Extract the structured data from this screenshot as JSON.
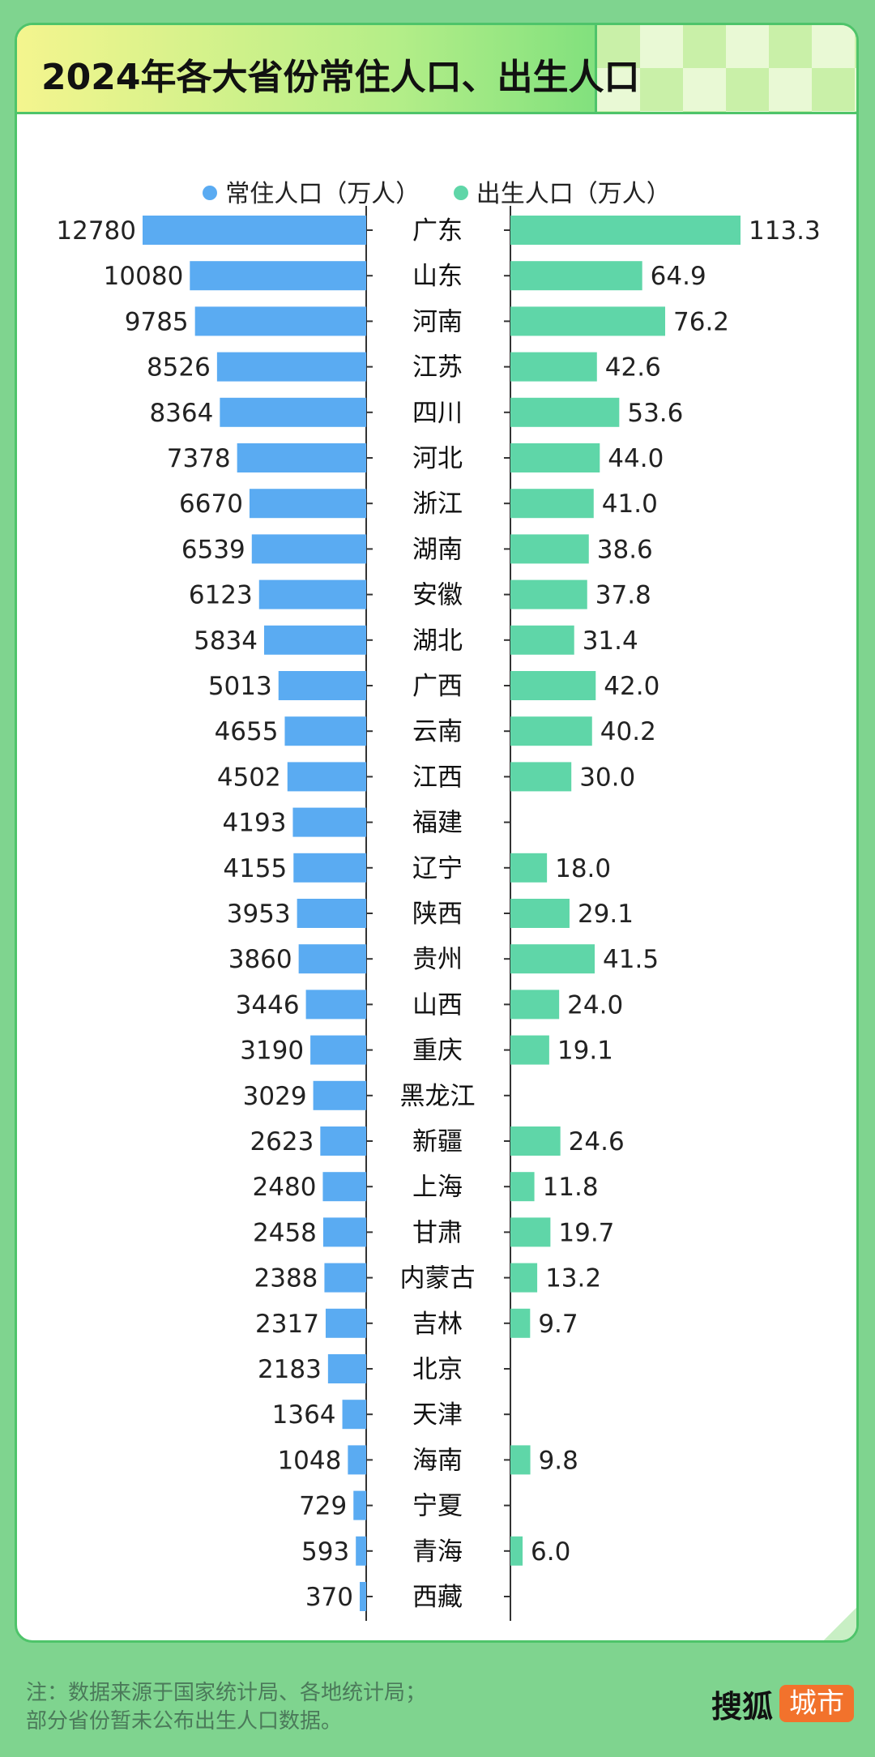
{
  "title": "2024年各大省份常住人口、出生人口",
  "legend": {
    "resident_label": "常住人口（万人）",
    "birth_label": "出生人口（万人）"
  },
  "colors": {
    "resident": "#5aabf2",
    "birth": "#5fd6a8",
    "axis": "#333333"
  },
  "footnote": {
    "line1": "注：数据来源于国家统计局、各地统计局；",
    "line2": "部分省份暂未公布出生人口数据。"
  },
  "brand": {
    "name": "搜狐",
    "tag": "城市"
  },
  "chart_data": {
    "type": "bar",
    "orientation": "horizontal-butterfly",
    "title": "2024年各大省份常住人口、出生人口",
    "categories": [
      "广东",
      "山东",
      "河南",
      "江苏",
      "四川",
      "河北",
      "浙江",
      "湖南",
      "安徽",
      "湖北",
      "广西",
      "云南",
      "江西",
      "福建",
      "辽宁",
      "陕西",
      "贵州",
      "山西",
      "重庆",
      "黑龙江",
      "新疆",
      "上海",
      "甘肃",
      "内蒙古",
      "吉林",
      "北京",
      "天津",
      "海南",
      "宁夏",
      "青海",
      "西藏"
    ],
    "series": [
      {
        "name": "常住人口（万人）",
        "values": [
          12780,
          10080,
          9785,
          8526,
          8364,
          7378,
          6670,
          6539,
          6123,
          5834,
          5013,
          4655,
          4502,
          4193,
          4155,
          3953,
          3860,
          3446,
          3190,
          3029,
          2623,
          2480,
          2458,
          2388,
          2317,
          2183,
          1364,
          1048,
          729,
          593,
          370
        ]
      },
      {
        "name": "出生人口（万人）",
        "values": [
          113.3,
          64.9,
          76.2,
          42.6,
          53.6,
          44.0,
          41.0,
          38.6,
          37.8,
          31.4,
          42.0,
          40.2,
          30.0,
          null,
          18.0,
          29.1,
          41.5,
          24.0,
          19.1,
          null,
          24.6,
          11.8,
          19.7,
          13.2,
          9.7,
          null,
          null,
          9.8,
          null,
          6.0,
          null
        ]
      }
    ]
  }
}
